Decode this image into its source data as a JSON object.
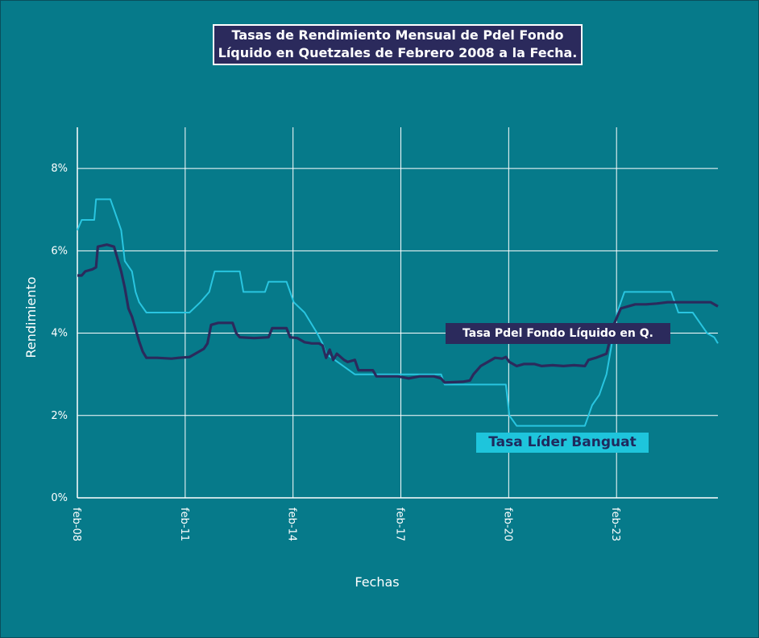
{
  "chart_data": {
    "type": "line",
    "title": "Tasas de Rendimiento Mensual de Pdel Fondo Líquido en Quetzales de Febrero 2008 a la Fecha.",
    "title_lines": [
      "Tasas de Rendimiento Mensual de Pdel Fondo",
      "Líquido en Quetzales de Febrero 2008 a la Fecha."
    ],
    "xlabel": "Fechas",
    "ylabel": "Rendimiento",
    "x_ticks": [
      "feb-08",
      "feb-11",
      "feb-14",
      "feb-17",
      "feb-20",
      "feb-23"
    ],
    "y_ticks": [
      "0%",
      "2%",
      "4%",
      "6%",
      "8%"
    ],
    "xlim": [
      2008.08,
      2025.9
    ],
    "ylim": [
      0,
      9
    ],
    "grid": true,
    "legend_placement": "inline labels",
    "series": [
      {
        "name": "Tasa Pdel Fondo Líquido en Q.",
        "color": "#2b2a5c",
        "points": [
          [
            2008.08,
            5.4
          ],
          [
            2008.2,
            5.4
          ],
          [
            2008.3,
            5.5
          ],
          [
            2008.5,
            5.55
          ],
          [
            2008.6,
            5.6
          ],
          [
            2008.65,
            6.1
          ],
          [
            2008.9,
            6.15
          ],
          [
            2009.1,
            6.1
          ],
          [
            2009.2,
            5.8
          ],
          [
            2009.3,
            5.5
          ],
          [
            2009.4,
            5.1
          ],
          [
            2009.5,
            4.6
          ],
          [
            2009.6,
            4.4
          ],
          [
            2009.7,
            4.1
          ],
          [
            2009.8,
            3.8
          ],
          [
            2009.9,
            3.55
          ],
          [
            2010.0,
            3.4
          ],
          [
            2010.3,
            3.4
          ],
          [
            2010.7,
            3.38
          ],
          [
            2010.9,
            3.4
          ],
          [
            2011.2,
            3.42
          ],
          [
            2011.4,
            3.52
          ],
          [
            2011.6,
            3.62
          ],
          [
            2011.7,
            3.75
          ],
          [
            2011.8,
            4.2
          ],
          [
            2012.0,
            4.25
          ],
          [
            2012.4,
            4.25
          ],
          [
            2012.5,
            4.0
          ],
          [
            2012.6,
            3.9
          ],
          [
            2013.0,
            3.88
          ],
          [
            2013.4,
            3.9
          ],
          [
            2013.5,
            4.12
          ],
          [
            2013.9,
            4.12
          ],
          [
            2014.0,
            3.9
          ],
          [
            2014.2,
            3.88
          ],
          [
            2014.4,
            3.78
          ],
          [
            2014.6,
            3.75
          ],
          [
            2014.8,
            3.75
          ],
          [
            2014.9,
            3.7
          ],
          [
            2015.0,
            3.4
          ],
          [
            2015.1,
            3.6
          ],
          [
            2015.2,
            3.35
          ],
          [
            2015.3,
            3.5
          ],
          [
            2015.5,
            3.35
          ],
          [
            2015.6,
            3.3
          ],
          [
            2015.8,
            3.35
          ],
          [
            2015.9,
            3.1
          ],
          [
            2016.3,
            3.1
          ],
          [
            2016.4,
            2.95
          ],
          [
            2016.8,
            2.95
          ],
          [
            2017.0,
            2.95
          ],
          [
            2017.3,
            2.9
          ],
          [
            2017.6,
            2.95
          ],
          [
            2018.0,
            2.95
          ],
          [
            2018.2,
            2.9
          ],
          [
            2018.3,
            2.8
          ],
          [
            2018.8,
            2.82
          ],
          [
            2019.0,
            2.85
          ],
          [
            2019.1,
            3.0
          ],
          [
            2019.3,
            3.2
          ],
          [
            2019.5,
            3.3
          ],
          [
            2019.7,
            3.4
          ],
          [
            2019.9,
            3.38
          ],
          [
            2020.0,
            3.42
          ],
          [
            2020.1,
            3.3
          ],
          [
            2020.3,
            3.2
          ],
          [
            2020.5,
            3.25
          ],
          [
            2020.8,
            3.25
          ],
          [
            2021.0,
            3.2
          ],
          [
            2021.3,
            3.22
          ],
          [
            2021.6,
            3.2
          ],
          [
            2021.9,
            3.22
          ],
          [
            2022.2,
            3.2
          ],
          [
            2022.3,
            3.35
          ],
          [
            2022.5,
            3.4
          ],
          [
            2022.8,
            3.5
          ],
          [
            2023.0,
            4.2
          ],
          [
            2023.2,
            4.6
          ],
          [
            2023.4,
            4.65
          ],
          [
            2023.6,
            4.7
          ],
          [
            2023.9,
            4.7
          ],
          [
            2024.2,
            4.72
          ],
          [
            2024.5,
            4.75
          ],
          [
            2024.8,
            4.75
          ],
          [
            2025.3,
            4.75
          ],
          [
            2025.7,
            4.75
          ],
          [
            2025.8,
            4.7
          ],
          [
            2025.9,
            4.65
          ]
        ]
      },
      {
        "name": "Tasa Líder Banguat",
        "color": "#29c5e0",
        "points": [
          [
            2008.08,
            6.5
          ],
          [
            2008.2,
            6.75
          ],
          [
            2008.55,
            6.75
          ],
          [
            2008.6,
            7.25
          ],
          [
            2009.0,
            7.25
          ],
          [
            2009.2,
            6.75
          ],
          [
            2009.3,
            6.5
          ],
          [
            2009.4,
            5.75
          ],
          [
            2009.6,
            5.5
          ],
          [
            2009.7,
            5.0
          ],
          [
            2009.8,
            4.75
          ],
          [
            2010.0,
            4.5
          ],
          [
            2011.0,
            4.5
          ],
          [
            2011.2,
            4.5
          ],
          [
            2011.5,
            4.75
          ],
          [
            2011.75,
            5.0
          ],
          [
            2011.9,
            5.5
          ],
          [
            2012.6,
            5.5
          ],
          [
            2012.7,
            5.0
          ],
          [
            2013.3,
            5.0
          ],
          [
            2013.4,
            5.25
          ],
          [
            2013.9,
            5.25
          ],
          [
            2014.0,
            5.0
          ],
          [
            2014.1,
            4.75
          ],
          [
            2014.4,
            4.5
          ],
          [
            2014.75,
            4.0
          ],
          [
            2014.9,
            3.75
          ],
          [
            2015.0,
            3.5
          ],
          [
            2015.4,
            3.25
          ],
          [
            2015.8,
            3.0
          ],
          [
            2016.5,
            3.0
          ],
          [
            2018.2,
            3.0
          ],
          [
            2018.3,
            2.75
          ],
          [
            2020.0,
            2.75
          ],
          [
            2020.1,
            2.0
          ],
          [
            2020.3,
            1.75
          ],
          [
            2022.2,
            1.75
          ],
          [
            2022.3,
            2.0
          ],
          [
            2022.4,
            2.25
          ],
          [
            2022.6,
            2.5
          ],
          [
            2022.7,
            2.75
          ],
          [
            2022.8,
            3.0
          ],
          [
            2022.9,
            3.5
          ],
          [
            2023.0,
            4.0
          ],
          [
            2023.1,
            4.5
          ],
          [
            2023.2,
            4.75
          ],
          [
            2023.3,
            5.0
          ],
          [
            2024.6,
            5.0
          ],
          [
            2024.7,
            4.75
          ],
          [
            2024.8,
            4.5
          ],
          [
            2025.2,
            4.5
          ],
          [
            2025.4,
            4.25
          ],
          [
            2025.6,
            4.0
          ],
          [
            2025.8,
            3.9
          ],
          [
            2025.9,
            3.75
          ]
        ]
      }
    ]
  }
}
